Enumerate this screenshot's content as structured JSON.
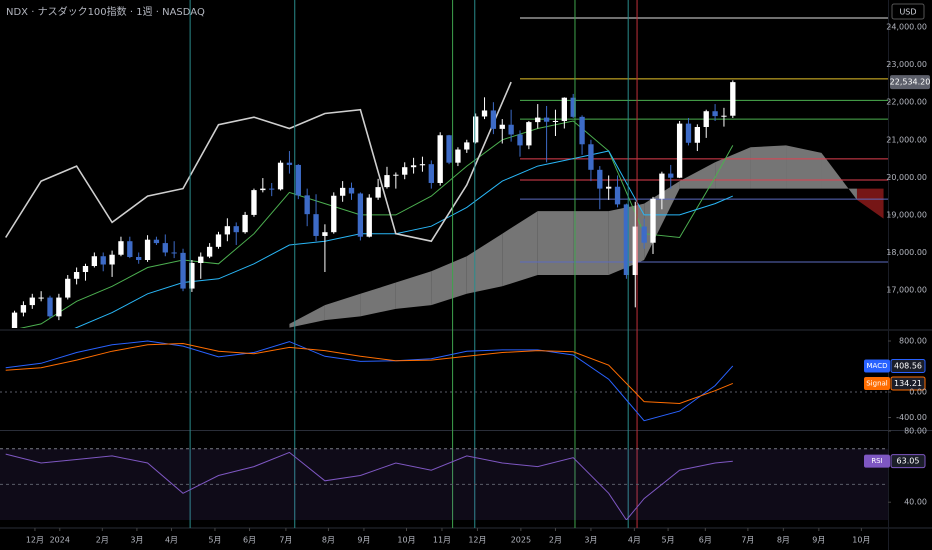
{
  "chart_data": [
    {
      "type": "candlestick",
      "title": "NDX · ナスダック100指数 · 1週 · NASDAQ",
      "currency": "USD",
      "xlim": [
        -0.64,
        99.5
      ],
      "ylim": [
        15990,
        24720
      ],
      "yticks": [
        {
          "value": 17000,
          "label": "17,000.00"
        },
        {
          "value": 18000,
          "label": "18,000.00"
        },
        {
          "value": 19000,
          "label": "19,000.00"
        },
        {
          "value": 20000,
          "label": "20,000.00"
        },
        {
          "value": 21000,
          "label": "21,000.00"
        },
        {
          "value": 22000,
          "label": "22,000.00"
        },
        {
          "value": 23000,
          "label": "23,000.00"
        },
        {
          "value": 24000,
          "label": "24,000.00"
        }
      ],
      "up_color": "#ffffff",
      "down_color": "#3d6bc7",
      "open": [
        15600,
        15800,
        16400,
        16600,
        16800,
        16800,
        16300,
        16800,
        17300,
        17480,
        17640,
        17900,
        17680,
        17940,
        18300,
        17880,
        17800,
        18340,
        18250,
        18000,
        17990,
        17040,
        17720,
        17890,
        18150,
        18480,
        18700,
        18540,
        19000,
        19660,
        19700,
        19680,
        20390,
        20330,
        19520,
        19020,
        18440,
        18540,
        19510,
        19720,
        19570,
        18420,
        19460,
        19740,
        20060,
        20070,
        20270,
        20320,
        20350,
        19850,
        21120,
        20390,
        20740,
        20930,
        21620,
        21780,
        21290,
        21400,
        21140,
        20850,
        21470,
        21590,
        21480,
        21500,
        22120,
        21610,
        20880,
        20200,
        19700,
        19750,
        19280,
        17400,
        18690,
        18260,
        19430,
        20100,
        19990,
        21430,
        20920,
        21340,
        21760,
        21630,
        21640
      ],
      "high": [
        15900,
        16450,
        16700,
        16900,
        16970,
        16850,
        16900,
        17400,
        17600,
        17700,
        18000,
        18000,
        18050,
        18420,
        18420,
        18000,
        18460,
        18420,
        18480,
        18300,
        18100,
        17800,
        18000,
        18250,
        18550,
        18910,
        18800,
        19080,
        19700,
        19980,
        19850,
        20450,
        20700,
        20350,
        19700,
        19550,
        18750,
        19600,
        19900,
        19860,
        19600,
        19550,
        19960,
        20280,
        20130,
        20400,
        20520,
        20550,
        20450,
        21200,
        21130,
        20800,
        21000,
        21700,
        22130,
        22000,
        21550,
        21800,
        21250,
        21500,
        21950,
        21900,
        21800,
        22130,
        22220,
        21650,
        21000,
        20300,
        20050,
        20050,
        19300,
        19350,
        18900,
        19480,
        20150,
        20330,
        21500,
        21580,
        21410,
        21800,
        21950,
        21850,
        22580
      ],
      "low": [
        15500,
        15750,
        16300,
        16500,
        16700,
        16250,
        16200,
        16750,
        17150,
        17250,
        17600,
        17500,
        17350,
        17900,
        17850,
        17700,
        17750,
        18200,
        17900,
        17850,
        16970,
        16950,
        17300,
        17850,
        18100,
        18300,
        18200,
        18500,
        18950,
        19600,
        19500,
        19650,
        20100,
        19420,
        18700,
        18300,
        17480,
        18500,
        19350,
        19400,
        18320,
        18400,
        19400,
        19700,
        19700,
        19950,
        20100,
        20150,
        19700,
        19780,
        20350,
        20300,
        20650,
        20900,
        21550,
        21150,
        20900,
        20950,
        20550,
        20750,
        21300,
        20400,
        21100,
        21300,
        21580,
        20600,
        19900,
        19150,
        19400,
        19200,
        17300,
        16540,
        18100,
        17960,
        19150,
        19700,
        19980,
        20850,
        20700,
        21050,
        21500,
        21350,
        21580
      ],
      "close": [
        15800,
        16400,
        16600,
        16800,
        16800,
        16300,
        16800,
        17300,
        17480,
        17640,
        17900,
        17680,
        17940,
        18300,
        17880,
        17800,
        18340,
        18250,
        18000,
        17990,
        17040,
        17720,
        17890,
        18150,
        18480,
        18700,
        18540,
        19000,
        19660,
        19700,
        19680,
        20390,
        20330,
        19520,
        19020,
        18440,
        18540,
        19510,
        19720,
        19570,
        18420,
        19460,
        19740,
        20060,
        20070,
        20270,
        20320,
        20350,
        19850,
        21120,
        20390,
        20740,
        20930,
        21620,
        21780,
        21290,
        21400,
        21140,
        20850,
        21470,
        21590,
        21480,
        21500,
        22120,
        21610,
        20880,
        20200,
        19700,
        19750,
        19280,
        17400,
        18690,
        18260,
        19430,
        20100,
        19990,
        21430,
        20920,
        21340,
        21760,
        21630,
        21640,
        22534.2
      ],
      "price_label": {
        "value": 22534.2,
        "label": "22,534.20"
      },
      "cloud": {
        "x": [
          32,
          36,
          40,
          44,
          48,
          52,
          56,
          60,
          64,
          68,
          72,
          76,
          80,
          84,
          88,
          92,
          96,
          99
        ],
        "span_a": [
          16100,
          16600,
          16900,
          17200,
          17500,
          17900,
          18500,
          19100,
          19100,
          19100,
          19300,
          19900,
          20400,
          20800,
          20850,
          20650,
          19400,
          18900
        ],
        "span_b": [
          16000,
          16200,
          16300,
          16500,
          16600,
          16900,
          17100,
          17400,
          17400,
          17400,
          17800,
          19700,
          19700,
          19700,
          19700,
          19700,
          19700,
          19700
        ],
        "color": "#8a8a8a",
        "negative_color": "#8b1a1a"
      },
      "series": [
        {
          "color": "#4caf50",
          "x": [
            0,
            4,
            8,
            12,
            16,
            20,
            24,
            28,
            32,
            36,
            40,
            44,
            48,
            52,
            56,
            60,
            64,
            68,
            72,
            76,
            80,
            82
          ],
          "values": [
            15900,
            16100,
            16700,
            17100,
            17600,
            17800,
            17700,
            18500,
            19600,
            19300,
            19000,
            19000,
            19500,
            20300,
            21000,
            21300,
            21500,
            20700,
            18500,
            18400,
            20000,
            20850
          ]
        },
        {
          "color": "#29b6f6",
          "x": [
            0,
            4,
            8,
            12,
            16,
            20,
            24,
            28,
            32,
            36,
            40,
            44,
            48,
            52,
            56,
            60,
            64,
            68,
            72,
            76,
            80,
            82
          ],
          "values": [
            15500,
            15600,
            16000,
            16400,
            16900,
            17200,
            17300,
            17700,
            18200,
            18300,
            18500,
            18500,
            18700,
            19200,
            19900,
            20300,
            20500,
            20700,
            19000,
            19000,
            19300,
            19500
          ]
        },
        {
          "color": "#cfcfcf",
          "x": [
            0,
            4,
            8,
            12,
            16,
            20,
            24,
            28,
            32,
            36,
            40,
            44,
            48,
            52,
            57
          ],
          "values": [
            18400,
            19900,
            20300,
            18800,
            19500,
            19700,
            21400,
            21600,
            21300,
            21700,
            21800,
            18500,
            18300,
            19800,
            22534.2
          ]
        }
      ],
      "levels": [
        {
          "value": 24240,
          "color": "#e0e0e0",
          "start": 58
        },
        {
          "value": 22620,
          "color": "#e6c229",
          "start": 58
        },
        {
          "value": 22050,
          "color": "#4caf50",
          "start": 58
        },
        {
          "value": 21550,
          "color": "#4caf50",
          "start": 58
        },
        {
          "value": 20490,
          "color": "#e04050",
          "start": 58
        },
        {
          "value": 19930,
          "color": "#e04050",
          "start": 58
        },
        {
          "value": 19420,
          "color": "#5c6bc0",
          "start": 58
        },
        {
          "value": 17745,
          "color": "#5c6bc0",
          "start": 58
        }
      ],
      "vlines": [
        {
          "value": 20.8,
          "color": "#2a8c8c"
        },
        {
          "value": 32.6,
          "color": "#2a8c8c"
        },
        {
          "value": 50.4,
          "color": "#3fa34d"
        },
        {
          "value": 52.9,
          "color": "#2a8c8c"
        },
        {
          "value": 64.2,
          "color": "#3fa34d"
        },
        {
          "value": 70.2,
          "color": "#2a8c8c"
        },
        {
          "value": 71.2,
          "color": "#c0303a"
        }
      ]
    },
    {
      "type": "line",
      "xlim": [
        -0.64,
        99.5
      ],
      "ylim": [
        -596,
        941
      ],
      "yticks": [
        {
          "value": 800,
          "label": "800.00"
        },
        {
          "value": 0,
          "label": "0.00"
        },
        {
          "value": -400,
          "label": "-400.00"
        }
      ],
      "zero_line": true,
      "series": [
        {
          "name": "MACD",
          "color": "#2962ff",
          "x": [
            0,
            4,
            8,
            12,
            16,
            20,
            24,
            28,
            32,
            36,
            40,
            44,
            48,
            52,
            56,
            60,
            64,
            68,
            72,
            76,
            80,
            82
          ],
          "values": [
            380,
            450,
            620,
            740,
            800,
            720,
            550,
            620,
            790,
            560,
            480,
            490,
            520,
            640,
            660,
            660,
            580,
            200,
            -450,
            -300,
            100,
            408.56
          ]
        },
        {
          "name": "Signal",
          "color": "#ff6d00",
          "x": [
            0,
            4,
            8,
            12,
            16,
            20,
            24,
            28,
            32,
            36,
            40,
            44,
            48,
            52,
            56,
            60,
            64,
            68,
            72,
            76,
            80,
            82
          ],
          "values": [
            340,
            380,
            500,
            640,
            740,
            760,
            640,
            600,
            700,
            650,
            560,
            490,
            500,
            560,
            620,
            650,
            630,
            420,
            -150,
            -180,
            20,
            134.21
          ]
        }
      ]
    },
    {
      "type": "line",
      "xlim": [
        -0.64,
        99.5
      ],
      "ylim": [
        30,
        80
      ],
      "yticks": [
        {
          "value": 80,
          "label": "80.00"
        },
        {
          "value": 40,
          "label": "40.00"
        }
      ],
      "band": [
        30,
        70
      ],
      "midline": 50,
      "series": [
        {
          "name": "RSI",
          "color": "#7e57c2",
          "x": [
            0,
            4,
            8,
            12,
            16,
            20,
            24,
            28,
            32,
            36,
            40,
            44,
            48,
            52,
            56,
            60,
            64,
            68,
            70,
            72,
            76,
            80,
            82
          ],
          "values": [
            67,
            62,
            64,
            66,
            62,
            45,
            55,
            60,
            68,
            52,
            55,
            62,
            58,
            66,
            62,
            60,
            65,
            45,
            30,
            42,
            58,
            62,
            63.05
          ]
        }
      ],
      "xticks": [
        {
          "value": 3.3,
          "label": "12月"
        },
        {
          "value": 6.1,
          "label": "2024"
        },
        {
          "value": 10.9,
          "label": "2月"
        },
        {
          "value": 14.8,
          "label": "3月"
        },
        {
          "value": 18.7,
          "label": "4月"
        },
        {
          "value": 23.6,
          "label": "5月"
        },
        {
          "value": 27.5,
          "label": "6月"
        },
        {
          "value": 31.6,
          "label": "7月"
        },
        {
          "value": 36.4,
          "label": "8月"
        },
        {
          "value": 40.4,
          "label": "9月"
        },
        {
          "value": 45.2,
          "label": "10月"
        },
        {
          "value": 49.2,
          "label": "11月"
        },
        {
          "value": 53.2,
          "label": "12月"
        },
        {
          "value": 58.1,
          "label": "2025"
        },
        {
          "value": 62.0,
          "label": "2月"
        },
        {
          "value": 66.0,
          "label": "3月"
        },
        {
          "value": 70.9,
          "label": "4月"
        },
        {
          "value": 74.7,
          "label": "5月"
        },
        {
          "value": 78.9,
          "label": "6月"
        },
        {
          "value": 83.7,
          "label": "7月"
        },
        {
          "value": 87.7,
          "label": "8月"
        },
        {
          "value": 91.7,
          "label": "9月"
        },
        {
          "value": 96.5,
          "label": "10月"
        }
      ]
    }
  ]
}
